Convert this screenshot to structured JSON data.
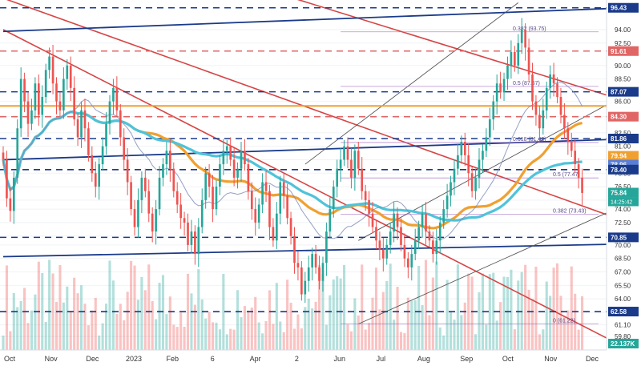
{
  "chart_data": {
    "type": "candlestick",
    "symbol_hint": "",
    "y_axis": {
      "side": "right",
      "ylim": [
        58.3,
        97.3
      ],
      "ticks": [
        94.0,
        92.5,
        90.0,
        88.5,
        86.0,
        84.3,
        82.5,
        81.0,
        79.5,
        78.0,
        76.5,
        75.0,
        74.0,
        72.5,
        71.0,
        70.0,
        68.5,
        67.0,
        65.5,
        64.0,
        62.5,
        61.1,
        59.8
      ],
      "tick_labels": [
        "94.00",
        "92.50",
        "90.00",
        "88.50",
        "86.00",
        "84.30",
        "82.50",
        "81.00",
        "79.50",
        "78.00",
        "76.50",
        "75.00",
        "74.00",
        "72.50",
        "71.00",
        "70.00",
        "68.50",
        "67.00",
        "65.50",
        "64.00",
        "62.50",
        "61.10",
        "59.80"
      ]
    },
    "x_axis": {
      "tick_labels": [
        "Oct",
        "Nov",
        "Dec",
        "2023",
        "Feb",
        "6",
        "Apr",
        "2",
        "Jun",
        "Jul",
        "Aug",
        "Sep",
        "Oct",
        "Nov",
        "Dec"
      ],
      "tick_positions_index": [
        0,
        30,
        60,
        90,
        118,
        147,
        178,
        208,
        239,
        269,
        300,
        331,
        361,
        392,
        422
      ]
    },
    "price_badges": [
      {
        "value": "96.43",
        "color": "#1a3a8a"
      },
      {
        "value": "91.61",
        "color": "#e06666"
      },
      {
        "value": "87.07",
        "color": "#1a3a8a"
      },
      {
        "value": "84.30",
        "color": "#e06666"
      },
      {
        "value": "81.86",
        "color": "#1a3a8a"
      },
      {
        "value": "79.94",
        "color": "#f0a030"
      },
      {
        "value": "78.96",
        "color": "#5b7fd6"
      },
      {
        "value": "78.40",
        "color": "#1a3a8a"
      },
      {
        "value": "75.84",
        "color": "#26a69a"
      },
      {
        "value": "70.85",
        "color": "#1a3a8a"
      },
      {
        "value": "62.58",
        "color": "#1a3a8a"
      },
      {
        "value": "22.137K",
        "color": "#26a69a"
      }
    ],
    "countdown": "14:25:42",
    "fib_labels": [
      {
        "text": "0.382 (93.75)",
        "y": 93.75
      },
      {
        "text": "0.5 (87.67)",
        "y": 87.67
      },
      {
        "text": "0.618 (81.42)",
        "y": 81.42
      },
      {
        "text": "0.5 (77.47)",
        "y": 77.47
      },
      {
        "text": "0.382 (73.43)",
        "y": 73.43
      },
      {
        "text": "0 (61.22)",
        "y": 61.22
      }
    ],
    "horizontal_levels": [
      {
        "y": 96.43,
        "style": "dashed",
        "color": "#1a3a8a"
      },
      {
        "y": 91.61,
        "style": "dashed",
        "color": "#e06666"
      },
      {
        "y": 87.07,
        "style": "dashed",
        "color": "#1a3a8a"
      },
      {
        "y": 84.3,
        "style": "dashed",
        "color": "#e06666"
      },
      {
        "y": 85.5,
        "style": "solid",
        "color": "#f0a030"
      },
      {
        "y": 81.86,
        "style": "dashed",
        "color": "#1a3a8a"
      },
      {
        "y": 78.4,
        "style": "dashed",
        "color": "#1a3a8a"
      },
      {
        "y": 70.85,
        "style": "dashed",
        "color": "#1a3a8a"
      },
      {
        "y": 62.58,
        "style": "dashed",
        "color": "#1a3a8a"
      }
    ],
    "close_series": [
      79.5,
      75.2,
      73.8,
      77.5,
      83.0,
      88.5,
      86.0,
      83.5,
      85.0,
      88.0,
      84.5,
      86.5,
      89.5,
      91.0,
      88.0,
      86.0,
      85.0,
      88.5,
      90.0,
      87.5,
      84.0,
      82.0,
      85.0,
      83.0,
      80.0,
      78.0,
      76.5,
      79.0,
      81.0,
      83.5,
      86.0,
      87.5,
      85.0,
      82.0,
      79.5,
      77.0,
      74.0,
      72.0,
      75.0,
      77.5,
      76.0,
      73.5,
      71.5,
      74.0,
      77.5,
      79.0,
      80.5,
      78.5,
      76.0,
      74.5,
      73.0,
      72.5,
      70.0,
      71.5,
      69.0,
      72.0,
      75.0,
      78.0,
      76.5,
      74.0,
      76.5,
      79.0,
      80.5,
      81.0,
      79.5,
      77.5,
      78.5,
      80.5,
      79.0,
      76.0,
      74.0,
      72.5,
      74.5,
      77.0,
      76.0,
      72.0,
      70.5,
      73.5,
      77.0,
      75.5,
      73.0,
      71.0,
      68.0,
      67.5,
      64.5,
      66.0,
      67.5,
      69.0,
      67.5,
      66.0,
      68.0,
      71.5,
      74.0,
      76.5,
      78.5,
      79.5,
      81.0,
      79.5,
      77.5,
      80.5,
      78.5,
      76.0,
      75.0,
      73.5,
      72.0,
      70.5,
      69.5,
      68.5,
      70.0,
      71.5,
      73.5,
      72.0,
      70.0,
      68.5,
      67.5,
      69.0,
      70.5,
      72.0,
      73.5,
      71.5,
      70.5,
      69.0,
      70.5,
      72.5,
      74.0,
      75.5,
      77.0,
      78.5,
      80.0,
      81.5,
      80.0,
      78.0,
      76.0,
      77.5,
      79.5,
      80.5,
      82.0,
      84.0,
      86.0,
      88.0,
      87.0,
      88.5,
      90.0,
      91.5,
      90.0,
      92.5,
      94.0,
      92.0,
      89.0,
      86.0,
      84.5,
      83.0,
      85.0,
      87.5,
      89.0,
      88.0,
      86.5,
      84.5,
      83.0,
      81.5,
      80.5,
      79.0,
      77.5,
      75.8
    ]
  }
}
